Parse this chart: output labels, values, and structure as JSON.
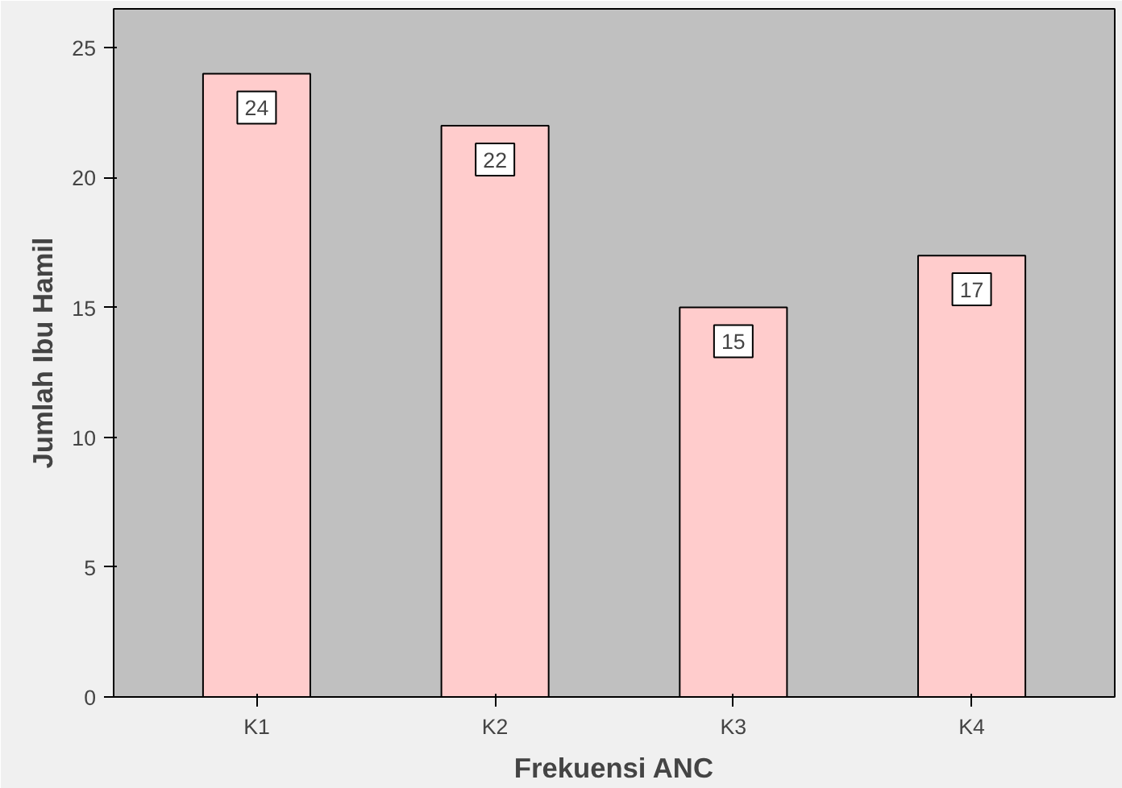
{
  "chart_data": {
    "type": "bar",
    "xlabel": "Frekuensi ANC",
    "ylabel": "Jumlah Ibu Hamil",
    "categories": [
      "K1",
      "K2",
      "K3",
      "K4"
    ],
    "values": [
      24,
      22,
      15,
      17
    ],
    "color": "#ffcccc",
    "ylim": [
      0,
      26.5
    ],
    "yticks": [
      0,
      5,
      10,
      15,
      20,
      25
    ],
    "grid": false,
    "data_labels": true
  }
}
